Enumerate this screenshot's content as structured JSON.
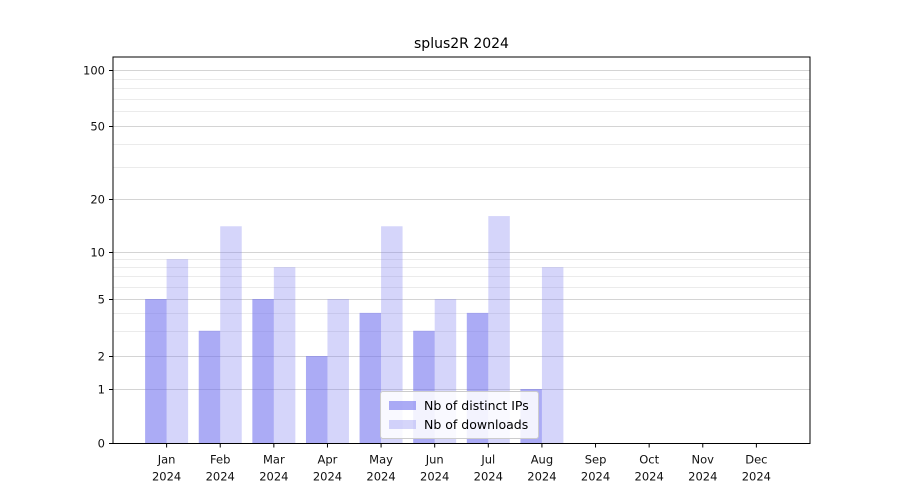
{
  "title": "splus2R 2024",
  "chart_data": {
    "type": "bar",
    "title": "splus2R 2024",
    "categories": [
      "Jan",
      "Feb",
      "Mar",
      "Apr",
      "May",
      "Jun",
      "Jul",
      "Aug",
      "Sep",
      "Oct",
      "Nov",
      "Dec"
    ],
    "x_sublabel": "2024",
    "series": [
      {
        "name": "Nb of distinct IPs",
        "values": [
          5,
          3,
          5,
          2,
          4,
          3,
          4,
          1,
          0,
          0,
          0,
          0
        ],
        "color": "rgba(110, 110, 238, 0.58)"
      },
      {
        "name": "Nb of downloads",
        "values": [
          9,
          14,
          8,
          5,
          14,
          5,
          16,
          8,
          0,
          0,
          0,
          0
        ],
        "color": "rgba(125, 125, 238, 0.32)"
      }
    ],
    "xlabel": "",
    "ylabel": "",
    "y_scale": "log-like (0,1,2,5,10,20,50,100)",
    "y_ticks": [
      0,
      1,
      2,
      5,
      10,
      20,
      50,
      100
    ],
    "y_minor_ticks": [
      3,
      4,
      6,
      7,
      8,
      9,
      30,
      40,
      60,
      70,
      80,
      90
    ],
    "ylim": [
      0,
      130
    ],
    "grid": "horizontal",
    "legend_position": "lower center",
    "colors": {
      "major_gridline": "#d4d4d4",
      "minor_gridline": "#ebebeb",
      "spine": "#000000",
      "tick_label": "#111111"
    }
  }
}
